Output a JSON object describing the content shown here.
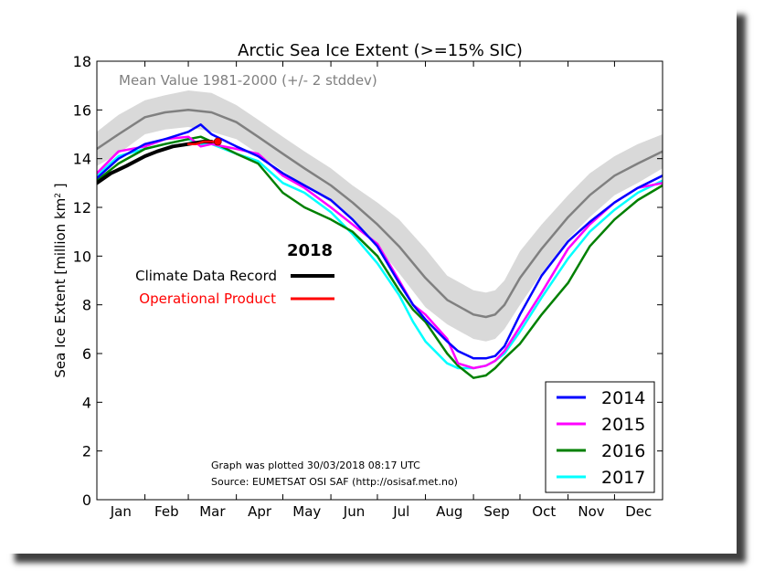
{
  "chart_data": {
    "type": "line",
    "title": "Arctic Sea Ice Extent (>=15% SIC)",
    "xlabel": "",
    "ylabel": "Sea Ice Extent [million km",
    "ylabel_sup": "2",
    "ylabel_end": " ]",
    "x_unit": "day of year",
    "xlim": [
      1,
      366
    ],
    "ylim": [
      0,
      18
    ],
    "yticks": [
      0,
      2,
      4,
      6,
      8,
      10,
      12,
      14,
      16,
      18
    ],
    "month_labels": [
      "Jan",
      "Feb",
      "Mar",
      "Apr",
      "May",
      "Jun",
      "Jul",
      "Aug",
      "Sep",
      "Oct",
      "Nov",
      "Dec"
    ],
    "mean_label": "Mean Value 1981-2000 (+/- 2 stddev)",
    "colors": {
      "mean": "#808080",
      "band": "#d9d9d9",
      "cdr_2018": "#000000",
      "op_2018": "#ff0000",
      "y2014": "#0000ff",
      "y2015": "#ff00ff",
      "y2016": "#008000",
      "y2017": "#00ffff"
    },
    "mean": {
      "x": [
        1,
        15,
        32,
        45,
        60,
        75,
        91,
        105,
        121,
        135,
        152,
        166,
        182,
        196,
        213,
        227,
        244,
        252,
        258,
        264,
        274,
        288,
        305,
        319,
        335,
        350,
        366
      ],
      "y": [
        14.4,
        15.0,
        15.7,
        15.9,
        16.0,
        15.9,
        15.5,
        14.9,
        14.2,
        13.6,
        12.9,
        12.2,
        11.3,
        10.4,
        9.1,
        8.2,
        7.6,
        7.5,
        7.6,
        8.0,
        9.1,
        10.3,
        11.6,
        12.5,
        13.3,
        13.8,
        14.3
      ]
    },
    "band_upper": [
      15.1,
      15.8,
      16.4,
      16.6,
      16.8,
      16.7,
      16.2,
      15.6,
      14.9,
      14.3,
      13.6,
      12.9,
      12.2,
      11.5,
      10.3,
      9.2,
      8.6,
      8.5,
      8.6,
      9.0,
      10.2,
      11.3,
      12.5,
      13.4,
      14.1,
      14.6,
      15.0
    ],
    "band_lower": [
      13.7,
      14.2,
      15.0,
      15.2,
      15.3,
      15.1,
      14.8,
      14.2,
      13.5,
      12.9,
      12.2,
      11.5,
      10.4,
      9.3,
      7.9,
      7.2,
      6.6,
      6.5,
      6.6,
      7.0,
      8.0,
      9.3,
      10.7,
      11.6,
      12.5,
      13.0,
      13.6
    ],
    "series": [
      {
        "name": "2014",
        "x": [
          1,
          15,
          32,
          45,
          60,
          68,
          75,
          91,
          105,
          121,
          135,
          152,
          166,
          182,
          196,
          205,
          213,
          227,
          234,
          244,
          252,
          258,
          264,
          274,
          288,
          305,
          319,
          335,
          350,
          366
        ],
        "y": [
          13.2,
          14.0,
          14.6,
          14.8,
          15.1,
          15.4,
          15.0,
          14.5,
          14.1,
          13.4,
          12.9,
          12.3,
          11.5,
          10.4,
          8.9,
          8.0,
          7.4,
          6.5,
          6.1,
          5.8,
          5.8,
          5.9,
          6.3,
          7.6,
          9.2,
          10.6,
          11.4,
          12.2,
          12.8,
          13.3
        ]
      },
      {
        "name": "2015",
        "x": [
          1,
          15,
          32,
          45,
          60,
          68,
          75,
          91,
          105,
          121,
          135,
          152,
          166,
          182,
          196,
          205,
          213,
          227,
          234,
          244,
          252,
          258,
          264,
          274,
          288,
          305,
          319,
          335,
          350,
          366
        ],
        "y": [
          13.4,
          14.3,
          14.5,
          14.8,
          14.9,
          14.5,
          14.6,
          14.4,
          14.2,
          13.3,
          12.8,
          12.0,
          11.3,
          10.5,
          9.0,
          8.0,
          7.6,
          6.6,
          5.6,
          5.4,
          5.5,
          5.7,
          6.1,
          7.1,
          8.5,
          10.3,
          11.3,
          12.2,
          12.8,
          13.0
        ]
      },
      {
        "name": "2016",
        "x": [
          1,
          15,
          32,
          45,
          60,
          68,
          75,
          91,
          105,
          121,
          135,
          152,
          166,
          182,
          196,
          205,
          213,
          227,
          234,
          244,
          252,
          258,
          264,
          274,
          288,
          305,
          319,
          335,
          350,
          366
        ],
        "y": [
          13.1,
          13.8,
          14.4,
          14.6,
          14.8,
          14.9,
          14.7,
          14.2,
          13.8,
          12.6,
          12.0,
          11.5,
          11.0,
          10.0,
          8.6,
          7.8,
          7.3,
          6.0,
          5.5,
          5.0,
          5.1,
          5.4,
          5.8,
          6.4,
          7.6,
          8.9,
          10.4,
          11.5,
          12.3,
          12.9
        ]
      },
      {
        "name": "2017",
        "x": [
          1,
          15,
          32,
          45,
          60,
          68,
          75,
          91,
          105,
          121,
          135,
          152,
          166,
          182,
          196,
          205,
          213,
          227,
          234,
          244,
          252,
          258,
          264,
          274,
          288,
          305,
          319,
          335,
          350,
          366
        ],
        "y": [
          13.3,
          14.1,
          14.4,
          14.6,
          14.8,
          14.6,
          14.6,
          14.2,
          13.9,
          13.0,
          12.6,
          11.8,
          10.9,
          9.7,
          8.4,
          7.3,
          6.5,
          5.6,
          5.4,
          5.4,
          5.5,
          5.7,
          6.0,
          6.9,
          8.3,
          9.9,
          11.0,
          11.9,
          12.6,
          13.1
        ]
      },
      {
        "name": "Climate Data Record",
        "x": [
          1,
          10,
          20,
          32,
          40,
          50,
          60,
          70,
          75
        ],
        "y": [
          13.0,
          13.4,
          13.7,
          14.1,
          14.3,
          14.5,
          14.6,
          14.7,
          14.7
        ]
      },
      {
        "name": "Operational Product",
        "x": [
          60,
          65,
          70,
          75,
          79
        ],
        "y": [
          14.6,
          14.6,
          14.7,
          14.7,
          14.7
        ]
      }
    ],
    "legend_year_label": "2018",
    "legend_entries": [
      "2014",
      "2015",
      "2016",
      "2017"
    ],
    "legend_position": "bottom-right",
    "grid": false,
    "annotations": [
      "Graph was plotted 30/03/2018 08:17 UTC",
      "Source: EUMETSAT OSI SAF (http://osisaf.met.no)"
    ]
  }
}
